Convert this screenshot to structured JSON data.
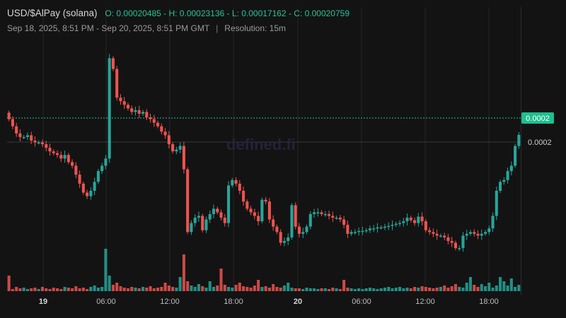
{
  "header": {
    "symbol": "USD/$AlPay (solana)",
    "ohlc": "O: 0.00020485 - H: 0.00023136 - L: 0.00017162 - C: 0.00020759",
    "range": "Sep 18, 2025, 8:51 PM - Sep 20, 2025, 8:51 PM GMT",
    "separator": "|",
    "resolution": "Resolution: 15m"
  },
  "watermark": "defined.fi",
  "colors": {
    "up": "#26a69a",
    "down": "#ef5350",
    "background": "#131313",
    "grid": "#262626",
    "last_price": "#1fbf8f"
  },
  "chart_data": {
    "type": "candlestick",
    "x_tick_labels": [
      "19",
      "06:00",
      "12:00",
      "18:00",
      "20",
      "06:00",
      "12:00",
      "18:00"
    ],
    "y_tick_labels": [
      "0.0002"
    ],
    "last_price_label": "0.0002",
    "ylim": [
      0.000164,
      0.000234
    ],
    "ohlc_summary": {
      "open": 0.00020485,
      "high": 0.00023136,
      "low": 0.00017162,
      "close": 0.00020759
    },
    "close_series": [
      0.000212,
      0.00021,
      0.000208,
      0.000207,
      0.000207,
      0.0002075,
      0.000206,
      0.0002055,
      0.0002055,
      0.000205,
      0.000204,
      0.000203,
      0.0002025,
      0.000202,
      0.000201,
      0.000202,
      0.0002,
      0.000199,
      0.0001965,
      0.000194,
      0.0001915,
      0.0001905,
      0.000192,
      0.0001945,
      0.0001975,
      0.000199,
      0.000201,
      0.000229,
      0.000226,
      0.000218,
      0.000217,
      0.000216,
      0.000215,
      0.000214,
      0.0002145,
      0.0002135,
      0.000214,
      0.0002125,
      0.000212,
      0.000211,
      0.00021,
      0.0002085,
      0.0002075,
      0.000205,
      0.000203,
      0.0002035,
      0.0002045,
      0.000198,
      0.0001805,
      0.000183,
      0.0001845,
      0.000185,
      0.000181,
      0.000184,
      0.0001855,
      0.000187,
      0.000186,
      0.0001845,
      0.000183,
      0.0001935,
      0.000195,
      0.000194,
      0.000192,
      0.000189,
      0.000187,
      0.000186,
      0.000185,
      0.0001835,
      0.0001895,
      0.000189,
      0.000184,
      0.000182,
      0.0001805,
      0.0001775,
      0.000178,
      0.000179,
      0.000188,
      0.000182,
      0.00018,
      0.0001805,
      0.000182,
      0.0001855,
      0.000186,
      0.000186,
      0.0001855,
      0.0001855,
      0.000185,
      0.0001845,
      0.0001845,
      0.000184,
      0.0001825,
      0.00018,
      0.0001805,
      0.0001805,
      0.0001808,
      0.0001808,
      0.000181,
      0.0001815,
      0.0001815,
      0.0001818,
      0.0001818,
      0.000182,
      0.0001822,
      0.0001825,
      0.0001828,
      0.000183,
      0.0001835,
      0.0001845,
      0.0001838,
      0.000183,
      0.0001848,
      0.0001835,
      0.000181,
      0.0001805,
      0.00018,
      0.0001795,
      0.0001795,
      0.000179,
      0.000178,
      0.0001775,
      0.000176,
      0.000176,
      0.0001795,
      0.00018,
      0.0001805,
      0.00018,
      0.0001795,
      0.00018,
      0.0001805,
      0.0001815,
      0.000185,
      0.000192,
      0.0001945,
      0.000195,
      0.0001975,
      0.000199,
      0.0002045,
      0.0002076
    ]
  }
}
